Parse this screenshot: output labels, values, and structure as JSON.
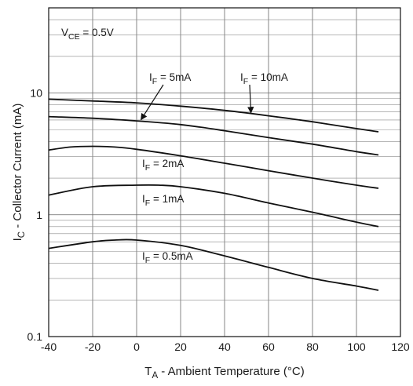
{
  "chart_data": {
    "type": "line",
    "x_axis": {
      "label_main": "T",
      "label_sub": "A",
      "label_rest": " - Ambient Temperature (°C)",
      "min": -40,
      "max": 120,
      "ticks": [
        -40,
        -20,
        0,
        20,
        40,
        60,
        80,
        100,
        120
      ],
      "tick_labels": [
        "-40",
        "-20",
        "0",
        "20",
        "40",
        "60",
        "80",
        "100",
        "120"
      ]
    },
    "y_axis": {
      "label_main": "I",
      "label_sub": "C",
      "label_rest": " - Collector Current (mA)",
      "scale": "log",
      "min": 0.1,
      "max": 50,
      "ticks": [
        0.1,
        1,
        10
      ],
      "tick_labels": [
        "0.1",
        "1",
        "10"
      ]
    },
    "grid": true,
    "annotation": {
      "main": "V",
      "sub": "CE",
      "rest": " = 0.5V"
    },
    "series": [
      {
        "name": "10mA",
        "label_main": "I",
        "label_sub": "F",
        "label_rest": " = 10mA",
        "x": [
          -40,
          -20,
          0,
          20,
          40,
          60,
          80,
          100,
          110
        ],
        "y": [
          8.9,
          8.6,
          8.3,
          7.8,
          7.2,
          6.5,
          5.8,
          5.1,
          4.8
        ]
      },
      {
        "name": "5mA",
        "label_main": "I",
        "label_sub": "F",
        "label_rest": " = 5mA",
        "x": [
          -40,
          -20,
          0,
          20,
          40,
          60,
          80,
          100,
          110
        ],
        "y": [
          6.4,
          6.2,
          5.9,
          5.5,
          4.9,
          4.3,
          3.8,
          3.3,
          3.1
        ]
      },
      {
        "name": "2mA",
        "label_main": "I",
        "label_sub": "F",
        "label_rest": " = 2mA",
        "x": [
          -40,
          -30,
          -20,
          -10,
          0,
          20,
          40,
          60,
          80,
          100,
          110
        ],
        "y": [
          3.4,
          3.6,
          3.65,
          3.6,
          3.45,
          3.05,
          2.65,
          2.3,
          2.0,
          1.75,
          1.65
        ]
      },
      {
        "name": "1mA",
        "label_main": "I",
        "label_sub": "F",
        "label_rest": " = 1mA",
        "x": [
          -40,
          -20,
          0,
          10,
          20,
          40,
          60,
          80,
          100,
          110
        ],
        "y": [
          1.45,
          1.7,
          1.75,
          1.75,
          1.7,
          1.5,
          1.25,
          1.05,
          0.87,
          0.8
        ]
      },
      {
        "name": "0.5mA",
        "label_main": "I",
        "label_sub": "F",
        "label_rest": " = 0.5mA",
        "x": [
          -40,
          -20,
          -10,
          0,
          20,
          40,
          60,
          80,
          100,
          110
        ],
        "y": [
          0.53,
          0.6,
          0.62,
          0.62,
          0.56,
          0.46,
          0.37,
          0.3,
          0.26,
          0.24
        ]
      }
    ]
  }
}
